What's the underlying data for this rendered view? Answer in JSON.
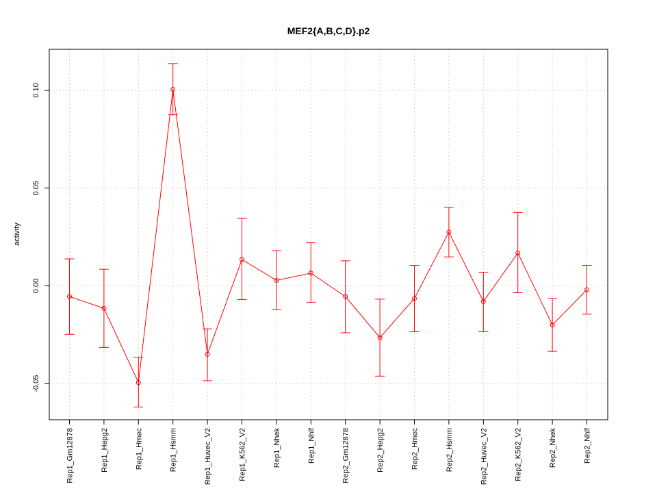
{
  "chart_data": {
    "type": "line",
    "title": "MEF2{A,B,C,D}.p2",
    "xlabel": "",
    "ylabel": "activity",
    "ylim": [
      -0.0685,
      0.121
    ],
    "yticks": [
      -0.05,
      0.0,
      0.05,
      0.1
    ],
    "ytick_labels": [
      "-0.05",
      "0.00",
      "0.05",
      "0.10"
    ],
    "grid": true,
    "colors": {
      "series": "#ff0000",
      "grid": "#d3d3d3",
      "axis": "#000000"
    },
    "categories": [
      "Rep1_Gm12878",
      "Rep1_Hepg2",
      "Rep1_Hmec",
      "Rep1_Hsmm",
      "Rep1_Huvec_V2",
      "Rep1_K562_V2",
      "Rep1_Nhek",
      "Rep1_Nhlf",
      "Rep2_Gm12878",
      "Rep2_Hepg2",
      "Rep2_Hmec",
      "Rep2_Hsmm",
      "Rep2_Huvec_V2",
      "Rep2_K562_V2",
      "Rep2_Nhek",
      "Rep2_Nhlf"
    ],
    "values": [
      -0.0055,
      -0.0115,
      -0.0495,
      0.1005,
      -0.035,
      0.0135,
      0.0028,
      0.0065,
      -0.0055,
      -0.0265,
      -0.0065,
      0.0275,
      -0.008,
      0.0168,
      -0.02,
      -0.002
    ],
    "err_upper": [
      0.0138,
      0.0085,
      -0.0365,
      0.1137,
      -0.022,
      0.0345,
      0.018,
      0.022,
      0.0128,
      -0.0068,
      0.0105,
      0.0402,
      0.007,
      0.0375,
      -0.0065,
      0.0105
    ],
    "err_lower": [
      -0.0248,
      -0.0315,
      -0.062,
      0.0875,
      -0.0485,
      -0.007,
      -0.0122,
      -0.0085,
      -0.024,
      -0.0462,
      -0.0235,
      0.0148,
      -0.0235,
      -0.0035,
      -0.0335,
      -0.0145
    ]
  }
}
